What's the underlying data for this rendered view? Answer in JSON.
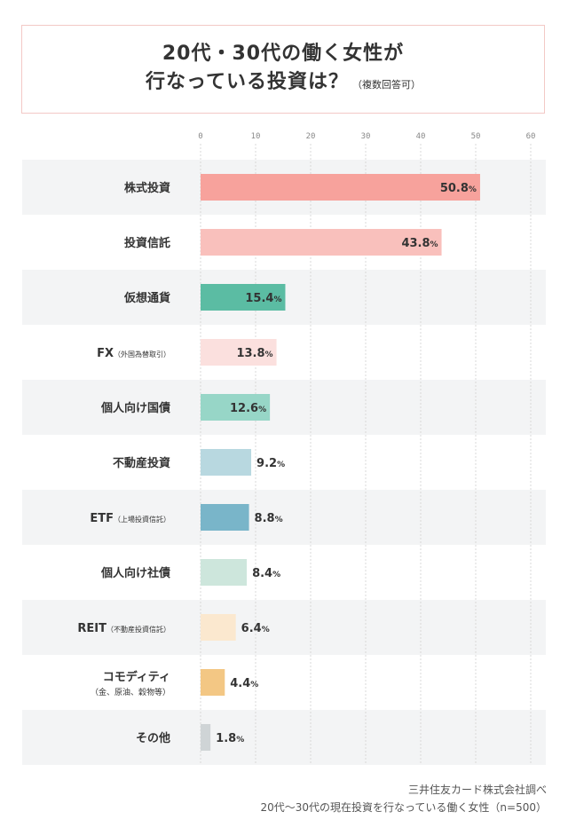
{
  "title": {
    "line1": "20代・30代の働く女性が",
    "line2": "行なっている投資は？",
    "note": "（複数回答可）"
  },
  "chart_data": {
    "type": "bar",
    "orientation": "horizontal",
    "xlim": [
      0,
      60
    ],
    "xticks": [
      "0",
      "10",
      "20",
      "30",
      "40",
      "50",
      "60"
    ],
    "grid": true,
    "categories": [
      {
        "label": "株式投資",
        "sub": "",
        "small": ""
      },
      {
        "label": "投資信託",
        "sub": "",
        "small": ""
      },
      {
        "label": "仮想通貨",
        "sub": "",
        "small": ""
      },
      {
        "label": "FX",
        "sub": "",
        "small": "（外国為替取引）"
      },
      {
        "label": "個人向け国債",
        "sub": "",
        "small": ""
      },
      {
        "label": "不動産投資",
        "sub": "",
        "small": ""
      },
      {
        "label": "ETF",
        "sub": "",
        "small": "（上場投資信託）"
      },
      {
        "label": "個人向け社債",
        "sub": "",
        "small": ""
      },
      {
        "label": "REIT",
        "sub": "",
        "small": "（不動産投資信託）"
      },
      {
        "label": "コモディティ",
        "sub": "（金、原油、穀物等）",
        "small": ""
      },
      {
        "label": "その他",
        "sub": "",
        "small": ""
      }
    ],
    "values": [
      50.8,
      43.8,
      15.4,
      13.8,
      12.6,
      9.2,
      8.8,
      8.4,
      6.4,
      4.4,
      1.8
    ],
    "value_labels": [
      "50.8",
      "43.8",
      "15.4",
      "13.8",
      "12.6",
      "9.2",
      "8.8",
      "8.4",
      "6.4",
      "4.4",
      "1.8"
    ],
    "unit": "%",
    "colors": [
      "#f7a29c",
      "#f9c0bc",
      "#5bbca3",
      "#fbe0de",
      "#97d6c7",
      "#b8d8e0",
      "#79b5c9",
      "#cde6dc",
      "#fbe8cf",
      "#f3c784",
      "#cfd4d6"
    ],
    "row_shading": "#f3f4f5"
  },
  "source": {
    "line1": "三井住友カード株式会社調べ",
    "line2": "20代～30代の現在投資を行なっている働く女性（n=500）"
  }
}
